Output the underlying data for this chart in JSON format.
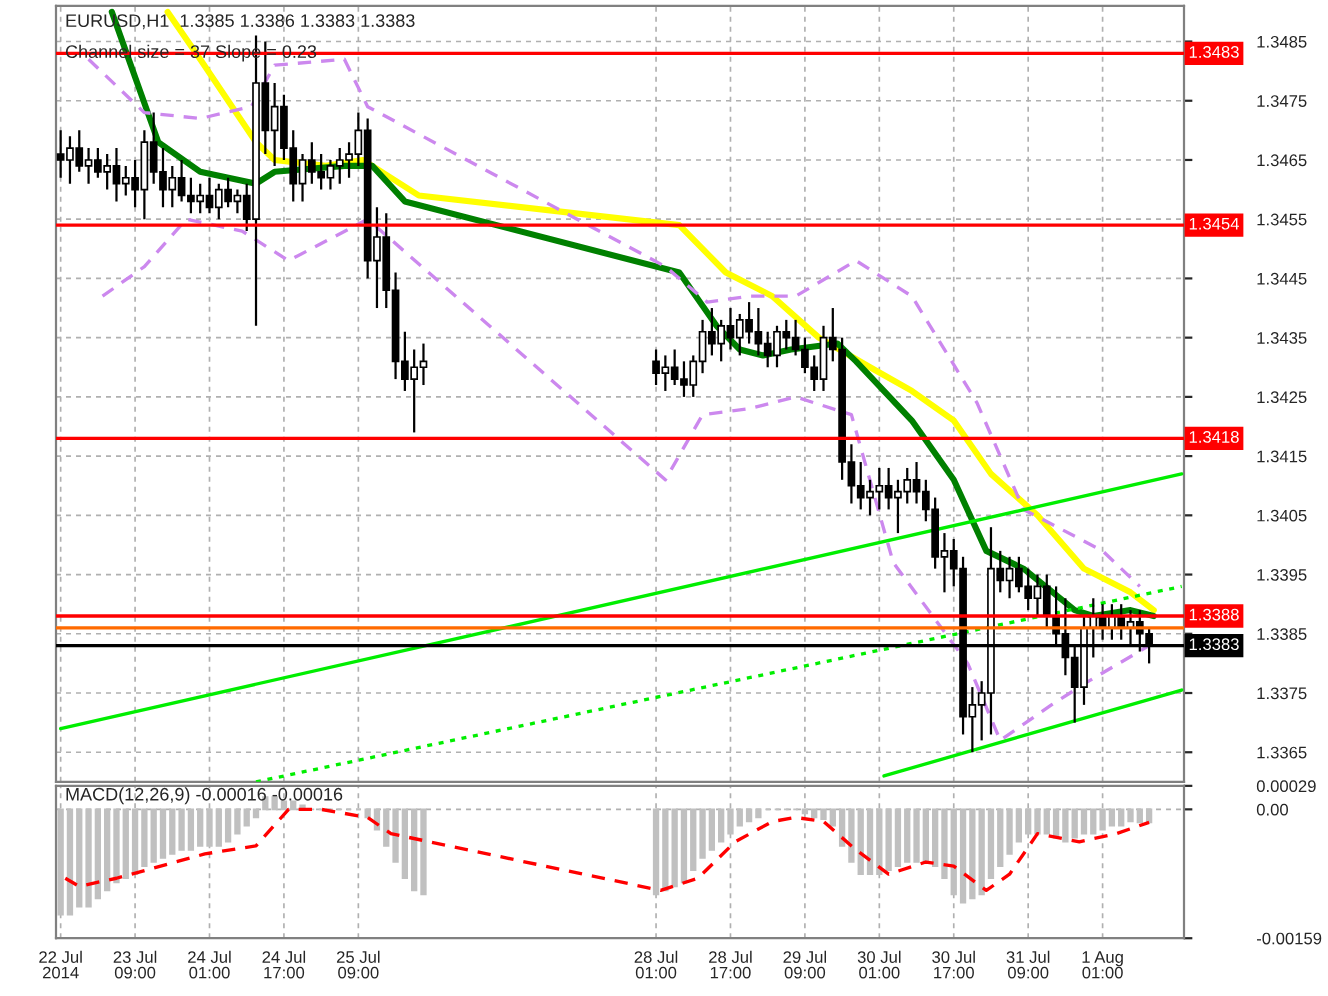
{
  "chart_data": [
    {
      "type": "candlestick",
      "title": "EURUSD,H1  1.3385 1.3386 1.3383 1.3383",
      "subtitle": "Channel size = 37 Slope = 0.23",
      "x": [
        "2014-07-22T17:00",
        "2014-07-22T19:00",
        "2014-07-22T21:00",
        "2014-07-22T23:00",
        "2014-07-23T01:00",
        "2014-07-23T03:00",
        "2014-07-23T05:00",
        "2014-07-23T07:00",
        "2014-07-23T09:00",
        "2014-07-23T11:00",
        "2014-07-23T13:00",
        "2014-07-23T15:00",
        "2014-07-23T17:00",
        "2014-07-23T19:00",
        "2014-07-23T21:00",
        "2014-07-23T23:00",
        "2014-07-24T01:00",
        "2014-07-24T03:00",
        "2014-07-24T05:00",
        "2014-07-24T07:00",
        "2014-07-24T09:00",
        "2014-07-24T11:00",
        "2014-07-24T13:00",
        "2014-07-24T15:00",
        "2014-07-24T17:00",
        "2014-07-24T19:00",
        "2014-07-24T21:00",
        "2014-07-24T23:00",
        "2014-07-25T01:00",
        "2014-07-25T03:00",
        "2014-07-25T05:00",
        "2014-07-25T07:00",
        "2014-07-25T09:00",
        "2014-07-25T11:00",
        "2014-07-25T13:00",
        "2014-07-25T15:00",
        "2014-07-25T17:00",
        "2014-07-25T19:00",
        "2014-07-25T21:00",
        "2014-07-25T23:00",
        "2014-07-28T01:00",
        "2014-07-28T03:00",
        "2014-07-28T05:00",
        "2014-07-28T07:00",
        "2014-07-28T09:00",
        "2014-07-28T11:00",
        "2014-07-28T13:00",
        "2014-07-28T15:00",
        "2014-07-28T17:00",
        "2014-07-28T19:00",
        "2014-07-28T21:00",
        "2014-07-28T23:00",
        "2014-07-29T01:00",
        "2014-07-29T03:00",
        "2014-07-29T05:00",
        "2014-07-29T07:00",
        "2014-07-29T09:00",
        "2014-07-29T11:00",
        "2014-07-29T13:00",
        "2014-07-29T15:00",
        "2014-07-29T17:00",
        "2014-07-29T19:00",
        "2014-07-29T21:00",
        "2014-07-29T23:00",
        "2014-07-30T01:00",
        "2014-07-30T03:00",
        "2014-07-30T05:00",
        "2014-07-30T07:00",
        "2014-07-30T09:00",
        "2014-07-30T11:00",
        "2014-07-30T13:00",
        "2014-07-30T15:00",
        "2014-07-30T17:00",
        "2014-07-30T19:00",
        "2014-07-30T21:00",
        "2014-07-30T23:00",
        "2014-07-31T01:00",
        "2014-07-31T03:00",
        "2014-07-31T05:00",
        "2014-07-31T07:00",
        "2014-07-31T09:00",
        "2014-07-31T11:00",
        "2014-07-31T13:00",
        "2014-07-31T15:00",
        "2014-07-31T17:00",
        "2014-07-31T19:00",
        "2014-07-31T21:00",
        "2014-07-31T23:00",
        "2014-08-01T01:00",
        "2014-08-01T03:00",
        "2014-08-01T05:00",
        "2014-08-01T07:00",
        "2014-08-01T09:00",
        "2014-08-01T11:00"
      ],
      "ohlc": [
        [
          1.3466,
          1.347,
          1.3462,
          1.3465
        ],
        [
          1.3465,
          1.3469,
          1.3461,
          1.3467
        ],
        [
          1.3467,
          1.347,
          1.3463,
          1.3464
        ],
        [
          1.3464,
          1.3467,
          1.3461,
          1.3465
        ],
        [
          1.3465,
          1.3467,
          1.3462,
          1.3463
        ],
        [
          1.3463,
          1.3466,
          1.346,
          1.3464
        ],
        [
          1.3464,
          1.3467,
          1.3458,
          1.3461
        ],
        [
          1.3461,
          1.3464,
          1.3459,
          1.3462
        ],
        [
          1.3462,
          1.3465,
          1.3457,
          1.346
        ],
        [
          1.346,
          1.347,
          1.3455,
          1.3468
        ],
        [
          1.3468,
          1.3473,
          1.3461,
          1.3463
        ],
        [
          1.3463,
          1.3467,
          1.3457,
          1.346
        ],
        [
          1.346,
          1.3464,
          1.3457,
          1.3462
        ],
        [
          1.3462,
          1.3465,
          1.3458,
          1.3459
        ],
        [
          1.3459,
          1.3462,
          1.3456,
          1.3458
        ],
        [
          1.3458,
          1.3461,
          1.3456,
          1.3459
        ],
        [
          1.3459,
          1.3462,
          1.3456,
          1.3457
        ],
        [
          1.3457,
          1.3461,
          1.3455,
          1.346
        ],
        [
          1.346,
          1.3462,
          1.3457,
          1.3458
        ],
        [
          1.3458,
          1.346,
          1.3456,
          1.3459
        ],
        [
          1.3459,
          1.3461,
          1.3453,
          1.3455
        ],
        [
          1.3455,
          1.3486,
          1.3437,
          1.3478
        ],
        [
          1.3478,
          1.3485,
          1.3466,
          1.347
        ],
        [
          1.347,
          1.3478,
          1.3464,
          1.3474
        ],
        [
          1.3474,
          1.3476,
          1.3465,
          1.3467
        ],
        [
          1.3467,
          1.347,
          1.3458,
          1.3461
        ],
        [
          1.3461,
          1.3466,
          1.3458,
          1.3465
        ],
        [
          1.3465,
          1.3468,
          1.3461,
          1.3463
        ],
        [
          1.3463,
          1.3466,
          1.346,
          1.3462
        ],
        [
          1.3462,
          1.3465,
          1.346,
          1.3464
        ],
        [
          1.3464,
          1.3467,
          1.3461,
          1.3465
        ],
        [
          1.3465,
          1.3468,
          1.3462,
          1.3466
        ],
        [
          1.3466,
          1.3473,
          1.3464,
          1.347
        ],
        [
          1.347,
          1.3472,
          1.3445,
          1.3448
        ],
        [
          1.3448,
          1.3457,
          1.344,
          1.3452
        ],
        [
          1.3452,
          1.3456,
          1.344,
          1.3443
        ],
        [
          1.3443,
          1.3446,
          1.3428,
          1.3431
        ],
        [
          1.3431,
          1.3436,
          1.3426,
          1.3428
        ],
        [
          1.3428,
          1.3433,
          1.3419,
          1.343
        ],
        [
          1.343,
          1.3434,
          1.3427,
          1.3431
        ],
        [
          1.3431,
          1.3433,
          1.3427,
          1.3429
        ],
        [
          1.3429,
          1.3432,
          1.3426,
          1.343
        ],
        [
          1.343,
          1.3433,
          1.3427,
          1.3428
        ],
        [
          1.3428,
          1.3431,
          1.3425,
          1.3427
        ],
        [
          1.3427,
          1.3432,
          1.3425,
          1.3431
        ],
        [
          1.3431,
          1.3438,
          1.3429,
          1.3436
        ],
        [
          1.3436,
          1.344,
          1.3432,
          1.3434
        ],
        [
          1.3434,
          1.3438,
          1.3431,
          1.3437
        ],
        [
          1.3437,
          1.344,
          1.3433,
          1.3435
        ],
        [
          1.3435,
          1.3439,
          1.3432,
          1.3438
        ],
        [
          1.3438,
          1.3441,
          1.3434,
          1.3436
        ],
        [
          1.3436,
          1.344,
          1.3432,
          1.3434
        ],
        [
          1.3434,
          1.3436,
          1.343,
          1.3432
        ],
        [
          1.3432,
          1.3437,
          1.343,
          1.3436
        ],
        [
          1.3436,
          1.3438,
          1.3433,
          1.3435
        ],
        [
          1.3435,
          1.3438,
          1.3432,
          1.3433
        ],
        [
          1.3433,
          1.3435,
          1.3429,
          1.343
        ],
        [
          1.343,
          1.3432,
          1.3426,
          1.3428
        ],
        [
          1.3428,
          1.3437,
          1.3426,
          1.3435
        ],
        [
          1.3435,
          1.344,
          1.3431,
          1.3433
        ],
        [
          1.3433,
          1.3435,
          1.3411,
          1.3414
        ],
        [
          1.3414,
          1.3417,
          1.3407,
          1.341
        ],
        [
          1.341,
          1.3414,
          1.3406,
          1.3408
        ],
        [
          1.3408,
          1.3411,
          1.3405,
          1.3409
        ],
        [
          1.3409,
          1.3413,
          1.3406,
          1.341
        ],
        [
          1.341,
          1.3413,
          1.3406,
          1.3408
        ],
        [
          1.3408,
          1.3411,
          1.3402,
          1.3409
        ],
        [
          1.3409,
          1.3413,
          1.3407,
          1.3411
        ],
        [
          1.3411,
          1.3414,
          1.3407,
          1.3409
        ],
        [
          1.3409,
          1.3411,
          1.3404,
          1.3406
        ],
        [
          1.3406,
          1.3408,
          1.3396,
          1.3398
        ],
        [
          1.3398,
          1.3402,
          1.3392,
          1.3399
        ],
        [
          1.3399,
          1.3401,
          1.3393,
          1.3396
        ],
        [
          1.3396,
          1.3398,
          1.3368,
          1.3371
        ],
        [
          1.3371,
          1.3376,
          1.3365,
          1.3373
        ],
        [
          1.3373,
          1.3377,
          1.3367,
          1.3375
        ],
        [
          1.3375,
          1.3403,
          1.3368,
          1.3396
        ],
        [
          1.3396,
          1.3399,
          1.3392,
          1.3394
        ],
        [
          1.3394,
          1.3398,
          1.3391,
          1.3396
        ],
        [
          1.3396,
          1.3398,
          1.3392,
          1.3393
        ],
        [
          1.3393,
          1.3396,
          1.3389,
          1.3391
        ],
        [
          1.3391,
          1.3395,
          1.3388,
          1.3393
        ],
        [
          1.3393,
          1.3395,
          1.3386,
          1.3388
        ],
        [
          1.3388,
          1.3393,
          1.3383,
          1.3385
        ],
        [
          1.3385,
          1.3391,
          1.3378,
          1.3381
        ],
        [
          1.3381,
          1.3383,
          1.337,
          1.3376
        ],
        [
          1.3376,
          1.3388,
          1.3373,
          1.3386
        ],
        [
          1.3386,
          1.3391,
          1.3381,
          1.3388
        ],
        [
          1.3388,
          1.339,
          1.3384,
          1.3386
        ],
        [
          1.3386,
          1.339,
          1.3384,
          1.3388
        ],
        [
          1.3388,
          1.339,
          1.3384,
          1.3386
        ],
        [
          1.3386,
          1.3389,
          1.3383,
          1.3387
        ],
        [
          1.3387,
          1.3389,
          1.3382,
          1.3385
        ],
        [
          1.3385,
          1.3386,
          1.338,
          1.3383
        ]
      ],
      "series": [
        {
          "type": "line",
          "color": "#ffff00",
          "line_style": "solid",
          "x": [
            "2014-07-23T16:00",
            "2014-07-23T23:00",
            "2014-07-24T11:00",
            "2014-07-24T15:00",
            "2014-07-25T02:00",
            "2014-07-25T10:00",
            "2014-07-25T22:00",
            "2014-07-28T06:00",
            "2014-07-28T16:00",
            "2014-07-29T02:00",
            "2014-07-29T12:00",
            "2014-07-29T23:00",
            "2014-07-30T08:00",
            "2014-07-30T17:00",
            "2014-07-31T01:00",
            "2014-07-31T11:00",
            "2014-07-31T21:00",
            "2014-08-01T07:00",
            "2014-08-01T12:00"
          ],
          "values": [
            1.349,
            1.3482,
            1.3468,
            1.3465,
            1.3464,
            1.3465,
            1.3459,
            1.3454,
            1.3446,
            1.3442,
            1.3435,
            1.343,
            1.3426,
            1.3421,
            1.3412,
            1.3405,
            1.3396,
            1.3392,
            1.3389
          ]
        },
        {
          "type": "line",
          "color": "#008000",
          "line_style": "solid",
          "x": [
            "2014-07-23T04:00",
            "2014-07-23T14:00",
            "2014-07-23T23:00",
            "2014-07-24T11:00",
            "2014-07-24T15:00",
            "2014-07-25T06:00",
            "2014-07-25T12:00",
            "2014-07-25T19:00",
            "2014-07-28T06:00",
            "2014-07-28T14:00",
            "2014-07-28T19:00",
            "2014-07-29T00:00",
            "2014-07-29T06:00",
            "2014-07-29T16:00",
            "2014-07-29T20:00",
            "2014-07-30T08:00",
            "2014-07-30T17:00",
            "2014-07-31T00:00",
            "2014-07-31T08:00",
            "2014-07-31T19:00",
            "2014-07-31T23:00",
            "2014-08-01T07:00",
            "2014-08-01T12:00"
          ],
          "values": [
            1.349,
            1.3468,
            1.3463,
            1.3461,
            1.3463,
            1.3464,
            1.3464,
            1.3458,
            1.3446,
            1.3437,
            1.3433,
            1.3432,
            1.3433,
            1.3434,
            1.3431,
            1.3421,
            1.3411,
            1.3399,
            1.3396,
            1.3389,
            1.3388,
            1.3389,
            1.3388
          ]
        },
        {
          "type": "line",
          "color": "#cc88ee",
          "line_style": "dashed",
          "x": [
            "2014-07-22T23:00",
            "2014-07-23T11:00",
            "2014-07-23T23:00",
            "2014-07-24T10:00",
            "2014-07-24T15:00",
            "2014-07-25T06:00",
            "2014-07-25T11:00",
            "2014-07-28T03:00",
            "2014-07-28T12:00",
            "2014-07-28T21:00",
            "2014-07-29T07:00",
            "2014-07-29T20:00",
            "2014-07-30T08:00",
            "2014-07-30T22:00",
            "2014-07-31T08:00",
            "2014-08-01T01:00",
            "2014-08-01T09:00"
          ],
          "values": [
            1.3482,
            1.3473,
            1.3472,
            1.3474,
            1.3481,
            1.3482,
            1.3474,
            1.3447,
            1.3441,
            1.3442,
            1.3442,
            1.3448,
            1.3442,
            1.3424,
            1.3406,
            1.3399,
            1.3393
          ]
        },
        {
          "type": "line",
          "color": "#cc88ee",
          "line_style": "dashed",
          "x": [
            "2014-07-23T02:00",
            "2014-07-23T11:00",
            "2014-07-23T20:00",
            "2014-07-24T08:00",
            "2014-07-24T18:00",
            "2014-07-25T11:00",
            "2014-07-28T03:00",
            "2014-07-28T11:00",
            "2014-07-28T21:00",
            "2014-07-29T07:00",
            "2014-07-29T19:00",
            "2014-07-30T04:00",
            "2014-07-30T20:00",
            "2014-07-31T03:00",
            "2014-07-31T14:00",
            "2014-07-31T22:00",
            "2014-08-01T11:00"
          ],
          "values": [
            1.3442,
            1.3447,
            1.3455,
            1.3453,
            1.3448,
            1.3455,
            1.3411,
            1.3422,
            1.3423,
            1.3425,
            1.3422,
            1.3397,
            1.338,
            1.3367,
            1.3373,
            1.3377,
            1.3383
          ]
        },
        {
          "type": "line",
          "color": "#00ee00",
          "line_style": "solid",
          "x": [
            "2014-07-22T17:00",
            "2014-08-01T18:00"
          ],
          "values": [
            1.3369,
            1.3412
          ]
        },
        {
          "type": "line",
          "color": "#00ee00",
          "line_style": "solid",
          "x": [
            "2014-07-30T02:00",
            "2014-08-01T18:00"
          ],
          "values": [
            1.3361,
            1.33755
          ]
        },
        {
          "type": "line",
          "color": "#00ee00",
          "line_style": "dotted",
          "x": [
            "2014-07-24T11:00",
            "2014-08-01T18:00"
          ],
          "values": [
            1.336,
            1.3393
          ]
        }
      ],
      "ref_lines": [
        {
          "axis": "y",
          "value": 1.3483,
          "label": "1.3483",
          "color": "#ff0000"
        },
        {
          "axis": "y",
          "value": 1.3454,
          "label": "1.3454",
          "color": "#ff0000"
        },
        {
          "axis": "y",
          "value": 1.3418,
          "label": "1.3418",
          "color": "#ff0000"
        },
        {
          "axis": "y",
          "value": 1.3388,
          "label": "1.3388",
          "color": "#ff0000"
        },
        {
          "axis": "y",
          "value": 1.3386,
          "color": "#ff6a00"
        },
        {
          "axis": "y",
          "value": 1.3383,
          "label": "1.3383",
          "color": "#000000"
        }
      ],
      "xlim": [
        "2014-07-22T16:00",
        "2014-08-01T18:30"
      ],
      "ylim": [
        1.336,
        1.3491
      ],
      "xticks": [
        "2014-07-22T17:00",
        "2014-07-23T09:00",
        "2014-07-24T01:00",
        "2014-07-24T17:00",
        "2014-07-25T09:00",
        "2014-07-28T01:00",
        "2014-07-28T17:00",
        "2014-07-29T09:00",
        "2014-07-30T01:00",
        "2014-07-30T17:00",
        "2014-07-31T09:00",
        "2014-08-01T01:00"
      ],
      "yticks": [
        1.3365,
        1.3375,
        1.3385,
        1.3395,
        1.3405,
        1.3415,
        1.3425,
        1.3435,
        1.3445,
        1.3455,
        1.3465,
        1.3475,
        1.3485
      ],
      "tick_labels": "y",
      "grid": true
    },
    {
      "type": "bar",
      "title": "MACD(12,26,9) -0.00016 -0.00016",
      "series": [
        {
          "type": "bar",
          "color": "#c0c0c0",
          "x": [
            "2014-07-22T17:00",
            "2014-07-22T19:00",
            "2014-07-22T21:00",
            "2014-07-22T23:00",
            "2014-07-23T01:00",
            "2014-07-23T03:00",
            "2014-07-23T05:00",
            "2014-07-23T07:00",
            "2014-07-23T09:00",
            "2014-07-23T11:00",
            "2014-07-23T13:00",
            "2014-07-23T15:00",
            "2014-07-23T17:00",
            "2014-07-23T19:00",
            "2014-07-23T21:00",
            "2014-07-23T23:00",
            "2014-07-24T01:00",
            "2014-07-24T03:00",
            "2014-07-24T05:00",
            "2014-07-24T07:00",
            "2014-07-24T09:00",
            "2014-07-24T11:00",
            "2014-07-24T13:00",
            "2014-07-24T15:00",
            "2014-07-24T17:00",
            "2014-07-24T19:00",
            "2014-07-24T21:00",
            "2014-07-24T23:00",
            "2014-07-25T01:00",
            "2014-07-25T03:00",
            "2014-07-25T05:00",
            "2014-07-25T07:00",
            "2014-07-25T09:00",
            "2014-07-25T11:00",
            "2014-07-25T13:00",
            "2014-07-25T15:00",
            "2014-07-25T17:00",
            "2014-07-25T19:00",
            "2014-07-25T21:00",
            "2014-07-25T23:00",
            "2014-07-28T01:00",
            "2014-07-28T03:00",
            "2014-07-28T05:00",
            "2014-07-28T07:00",
            "2014-07-28T09:00",
            "2014-07-28T11:00",
            "2014-07-28T13:00",
            "2014-07-28T15:00",
            "2014-07-28T17:00",
            "2014-07-28T19:00",
            "2014-07-28T21:00",
            "2014-07-28T23:00",
            "2014-07-29T01:00",
            "2014-07-29T03:00",
            "2014-07-29T05:00",
            "2014-07-29T07:00",
            "2014-07-29T09:00",
            "2014-07-29T11:00",
            "2014-07-29T13:00",
            "2014-07-29T15:00",
            "2014-07-29T17:00",
            "2014-07-29T19:00",
            "2014-07-29T21:00",
            "2014-07-29T23:00",
            "2014-07-30T01:00",
            "2014-07-30T03:00",
            "2014-07-30T05:00",
            "2014-07-30T07:00",
            "2014-07-30T09:00",
            "2014-07-30T11:00",
            "2014-07-30T13:00",
            "2014-07-30T15:00",
            "2014-07-30T17:00",
            "2014-07-30T19:00",
            "2014-07-30T21:00",
            "2014-07-30T23:00",
            "2014-07-31T01:00",
            "2014-07-31T03:00",
            "2014-07-31T05:00",
            "2014-07-31T07:00",
            "2014-07-31T09:00",
            "2014-07-31T11:00",
            "2014-07-31T13:00",
            "2014-07-31T15:00",
            "2014-07-31T17:00",
            "2014-07-31T19:00",
            "2014-07-31T21:00",
            "2014-07-31T23:00",
            "2014-08-01T01:00",
            "2014-08-01T03:00",
            "2014-08-01T05:00",
            "2014-08-01T07:00",
            "2014-08-01T09:00",
            "2014-08-01T11:00"
          ],
          "values": [
            -0.0013,
            -0.0013,
            -0.0012,
            -0.0012,
            -0.0011,
            -0.001,
            -0.0009,
            -0.00085,
            -0.0008,
            -0.0007,
            -0.00065,
            -0.0006,
            -0.00055,
            -0.0005,
            -0.0005,
            -0.00045,
            -0.00045,
            -0.00045,
            -0.0004,
            -0.0003,
            -0.0002,
            -0.0001,
            0.00015,
            0.00015,
            0.0001,
            0.0001,
            5e-05,
            0,
            0,
            0,
            0,
            0,
            0,
            -0.0001,
            -0.00025,
            -0.00045,
            -0.00065,
            -0.00085,
            -0.001,
            -0.00105,
            -0.00105,
            -0.001,
            -0.00095,
            -0.0009,
            -0.00075,
            -0.0006,
            -0.0005,
            -0.0004,
            -0.0003,
            -0.0002,
            -0.00015,
            -0.0001,
            0,
            0,
            0,
            0,
            -5e-05,
            -0.0001,
            -0.00012,
            -0.0002,
            -0.00045,
            -0.00065,
            -0.0008,
            -0.0008,
            -0.0008,
            -0.00075,
            -0.0007,
            -0.00065,
            -0.00065,
            -0.00065,
            -0.0007,
            -0.00085,
            -0.00105,
            -0.00115,
            -0.0011,
            -0.00105,
            -0.00085,
            -0.0007,
            -0.00055,
            -0.0004,
            -0.0003,
            -0.0003,
            -0.0003,
            -0.00035,
            -0.0004,
            -0.00035,
            -0.0003,
            -0.0003,
            -0.00025,
            -0.0002,
            -0.0002,
            -0.00015,
            -0.00016,
            -0.00016
          ]
        },
        {
          "type": "line",
          "color": "#ff0000",
          "line_style": "dashed",
          "x": [
            "2014-07-22T18:00",
            "2014-07-22T21:00",
            "2014-07-23T05:00",
            "2014-07-24T00:00",
            "2014-07-24T11:00",
            "2014-07-24T18:00",
            "2014-07-25T01:00",
            "2014-07-25T11:00",
            "2014-07-25T16:00",
            "2014-07-28T02:00",
            "2014-07-28T10:00",
            "2014-07-28T18:00",
            "2014-07-29T02:00",
            "2014-07-29T07:00",
            "2014-07-29T13:00",
            "2014-07-29T20:00",
            "2014-07-30T03:00",
            "2014-07-30T11:00",
            "2014-07-30T17:00",
            "2014-07-31T00:00",
            "2014-07-31T05:00",
            "2014-07-31T11:00",
            "2014-07-31T20:00",
            "2014-08-01T04:00",
            "2014-08-01T11:00"
          ],
          "values": [
            -0.00085,
            -0.00095,
            -0.00085,
            -0.00055,
            -0.00045,
            0,
            0,
            -0.0001,
            -0.0003,
            -0.001,
            -0.00085,
            -0.0004,
            -0.00015,
            -0.0001,
            -0.00015,
            -0.0005,
            -0.0008,
            -0.00065,
            -0.0007,
            -0.001,
            -0.0008,
            -0.0003,
            -0.0004,
            -0.0003,
            -0.00016
          ]
        }
      ],
      "xlim": [
        "2014-07-22T16:00",
        "2014-08-01T18:30"
      ],
      "ylim": [
        -0.00159,
        0.00029
      ],
      "xticks": [
        {
          "value": "2014-07-22T17:00",
          "label": "22 Jul 2014"
        },
        {
          "value": "2014-07-23T09:00",
          "label": "23 Jul 09:00"
        },
        {
          "value": "2014-07-24T01:00",
          "label": "24 Jul 01:00"
        },
        {
          "value": "2014-07-24T17:00",
          "label": "24 Jul 17:00"
        },
        {
          "value": "2014-07-25T09:00",
          "label": "25 Jul 09:00"
        },
        {
          "value": "2014-07-28T01:00",
          "label": "28 Jul 01:00"
        },
        {
          "value": "2014-07-28T17:00",
          "label": "28 Jul 17:00"
        },
        {
          "value": "2014-07-29T09:00",
          "label": "29 Jul 09:00"
        },
        {
          "value": "2014-07-30T01:00",
          "label": "30 Jul 01:00"
        },
        {
          "value": "2014-07-30T17:00",
          "label": "30 Jul 17:00"
        },
        {
          "value": "2014-07-31T09:00",
          "label": "31 Jul 09:00"
        },
        {
          "value": "2014-08-01T01:00",
          "label": "1 Aug 01:00"
        }
      ],
      "yticks": [
        0.00029,
        {
          "value": 0,
          "label": "0.00"
        },
        -0.00159
      ],
      "grid": true
    }
  ]
}
